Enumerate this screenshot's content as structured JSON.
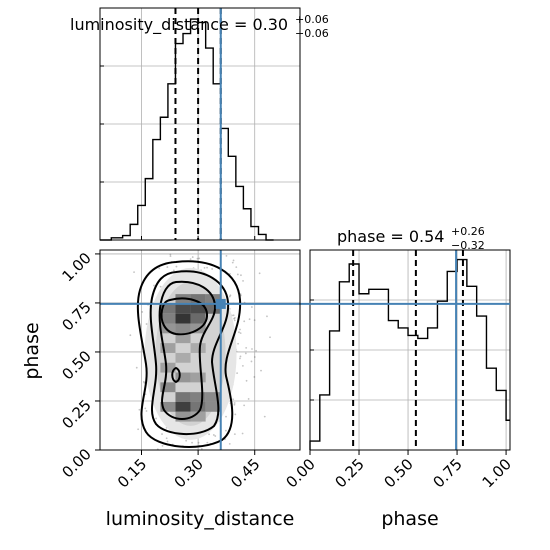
{
  "chart_data": {
    "type": "corner",
    "parameters": [
      "luminosity_distance",
      "phase"
    ],
    "truths": {
      "luminosity_distance": 0.36,
      "phase": 0.745
    },
    "grid": true,
    "panels": [
      {
        "panel": "hist-luminosity_distance",
        "type": "histogram",
        "title": {
          "label": "luminosity_distance",
          "median": "0.30",
          "plus": "+0.06",
          "minus": "−0.06"
        },
        "xlim": [
          0.04,
          0.57
        ],
        "quantiles": [
          0.24,
          0.3,
          0.36
        ],
        "bin_edges": [
          0.04,
          0.07,
          0.1,
          0.12,
          0.14,
          0.16,
          0.18,
          0.2,
          0.22,
          0.24,
          0.26,
          0.28,
          0.3,
          0.32,
          0.34,
          0.36,
          0.38,
          0.4,
          0.42,
          0.44,
          0.46,
          0.48,
          0.5
        ],
        "counts": [
          0,
          2,
          4,
          14,
          31,
          55,
          90,
          110,
          140,
          176,
          185,
          198,
          195,
          172,
          140,
          100,
          75,
          48,
          28,
          12,
          5,
          0
        ]
      },
      {
        "panel": "hist-phase",
        "type": "histogram",
        "title": {
          "label": "phase",
          "median": "0.54",
          "plus": "+0.26",
          "minus": "−0.32"
        },
        "xlim": [
          0.0,
          1.02
        ],
        "x_ticks": [
          "0.00",
          "0.25",
          "0.50",
          "0.75",
          "1.00"
        ],
        "quantiles": [
          0.22,
          0.54,
          0.78
        ],
        "bin_edges": [
          0.0,
          0.05,
          0.1,
          0.15,
          0.2,
          0.25,
          0.3,
          0.35,
          0.4,
          0.45,
          0.5,
          0.55,
          0.6,
          0.65,
          0.7,
          0.75,
          0.8,
          0.85,
          0.9,
          0.95,
          1.0,
          1.02
        ],
        "counts": [
          6,
          37,
          80,
          113,
          125,
          105,
          108,
          108,
          87,
          82,
          77,
          75,
          82,
          100,
          120,
          128,
          110,
          90,
          55,
          40,
          20,
          20
        ],
        "xlabel": "phase"
      },
      {
        "panel": "2d-luminosity_distance-phase",
        "type": "density-contour",
        "xlim": [
          0.04,
          0.57
        ],
        "ylim": [
          0.0,
          1.02
        ],
        "x_ticks": [
          "0.15",
          "0.30",
          "0.45"
        ],
        "y_ticks": [
          "0.00",
          "0.25",
          "0.50",
          "0.75",
          "1.00"
        ],
        "xlabel": "luminosity_distance",
        "ylabel": "phase",
        "density_cells": [
          {
            "x": 0.22,
            "y": 0.72,
            "v": 0.55
          },
          {
            "x": 0.26,
            "y": 0.72,
            "v": 0.75
          },
          {
            "x": 0.3,
            "y": 0.72,
            "v": 0.75
          },
          {
            "x": 0.34,
            "y": 0.72,
            "v": 0.6
          },
          {
            "x": 0.26,
            "y": 0.67,
            "v": 0.85
          },
          {
            "x": 0.22,
            "y": 0.67,
            "v": 0.5
          },
          {
            "x": 0.3,
            "y": 0.67,
            "v": 0.6
          },
          {
            "x": 0.26,
            "y": 0.77,
            "v": 0.5
          },
          {
            "x": 0.3,
            "y": 0.77,
            "v": 0.55
          },
          {
            "x": 0.34,
            "y": 0.77,
            "v": 0.5
          },
          {
            "x": 0.26,
            "y": 0.62,
            "v": 0.45
          },
          {
            "x": 0.22,
            "y": 0.62,
            "v": 0.4
          },
          {
            "x": 0.3,
            "y": 0.62,
            "v": 0.4
          },
          {
            "x": 0.26,
            "y": 0.57,
            "v": 0.35
          },
          {
            "x": 0.22,
            "y": 0.52,
            "v": 0.35
          },
          {
            "x": 0.26,
            "y": 0.47,
            "v": 0.3
          },
          {
            "x": 0.3,
            "y": 0.52,
            "v": 0.3
          },
          {
            "x": 0.22,
            "y": 0.42,
            "v": 0.35
          },
          {
            "x": 0.26,
            "y": 0.37,
            "v": 0.4
          },
          {
            "x": 0.3,
            "y": 0.37,
            "v": 0.35
          },
          {
            "x": 0.22,
            "y": 0.32,
            "v": 0.45
          },
          {
            "x": 0.26,
            "y": 0.27,
            "v": 0.55
          },
          {
            "x": 0.3,
            "y": 0.27,
            "v": 0.5
          },
          {
            "x": 0.34,
            "y": 0.27,
            "v": 0.45
          },
          {
            "x": 0.26,
            "y": 0.22,
            "v": 0.8
          },
          {
            "x": 0.3,
            "y": 0.22,
            "v": 0.55
          },
          {
            "x": 0.34,
            "y": 0.22,
            "v": 0.45
          },
          {
            "x": 0.22,
            "y": 0.22,
            "v": 0.45
          },
          {
            "x": 0.3,
            "y": 0.17,
            "v": 0.35
          },
          {
            "x": 0.26,
            "y": 0.17,
            "v": 0.4
          }
        ]
      }
    ]
  }
}
